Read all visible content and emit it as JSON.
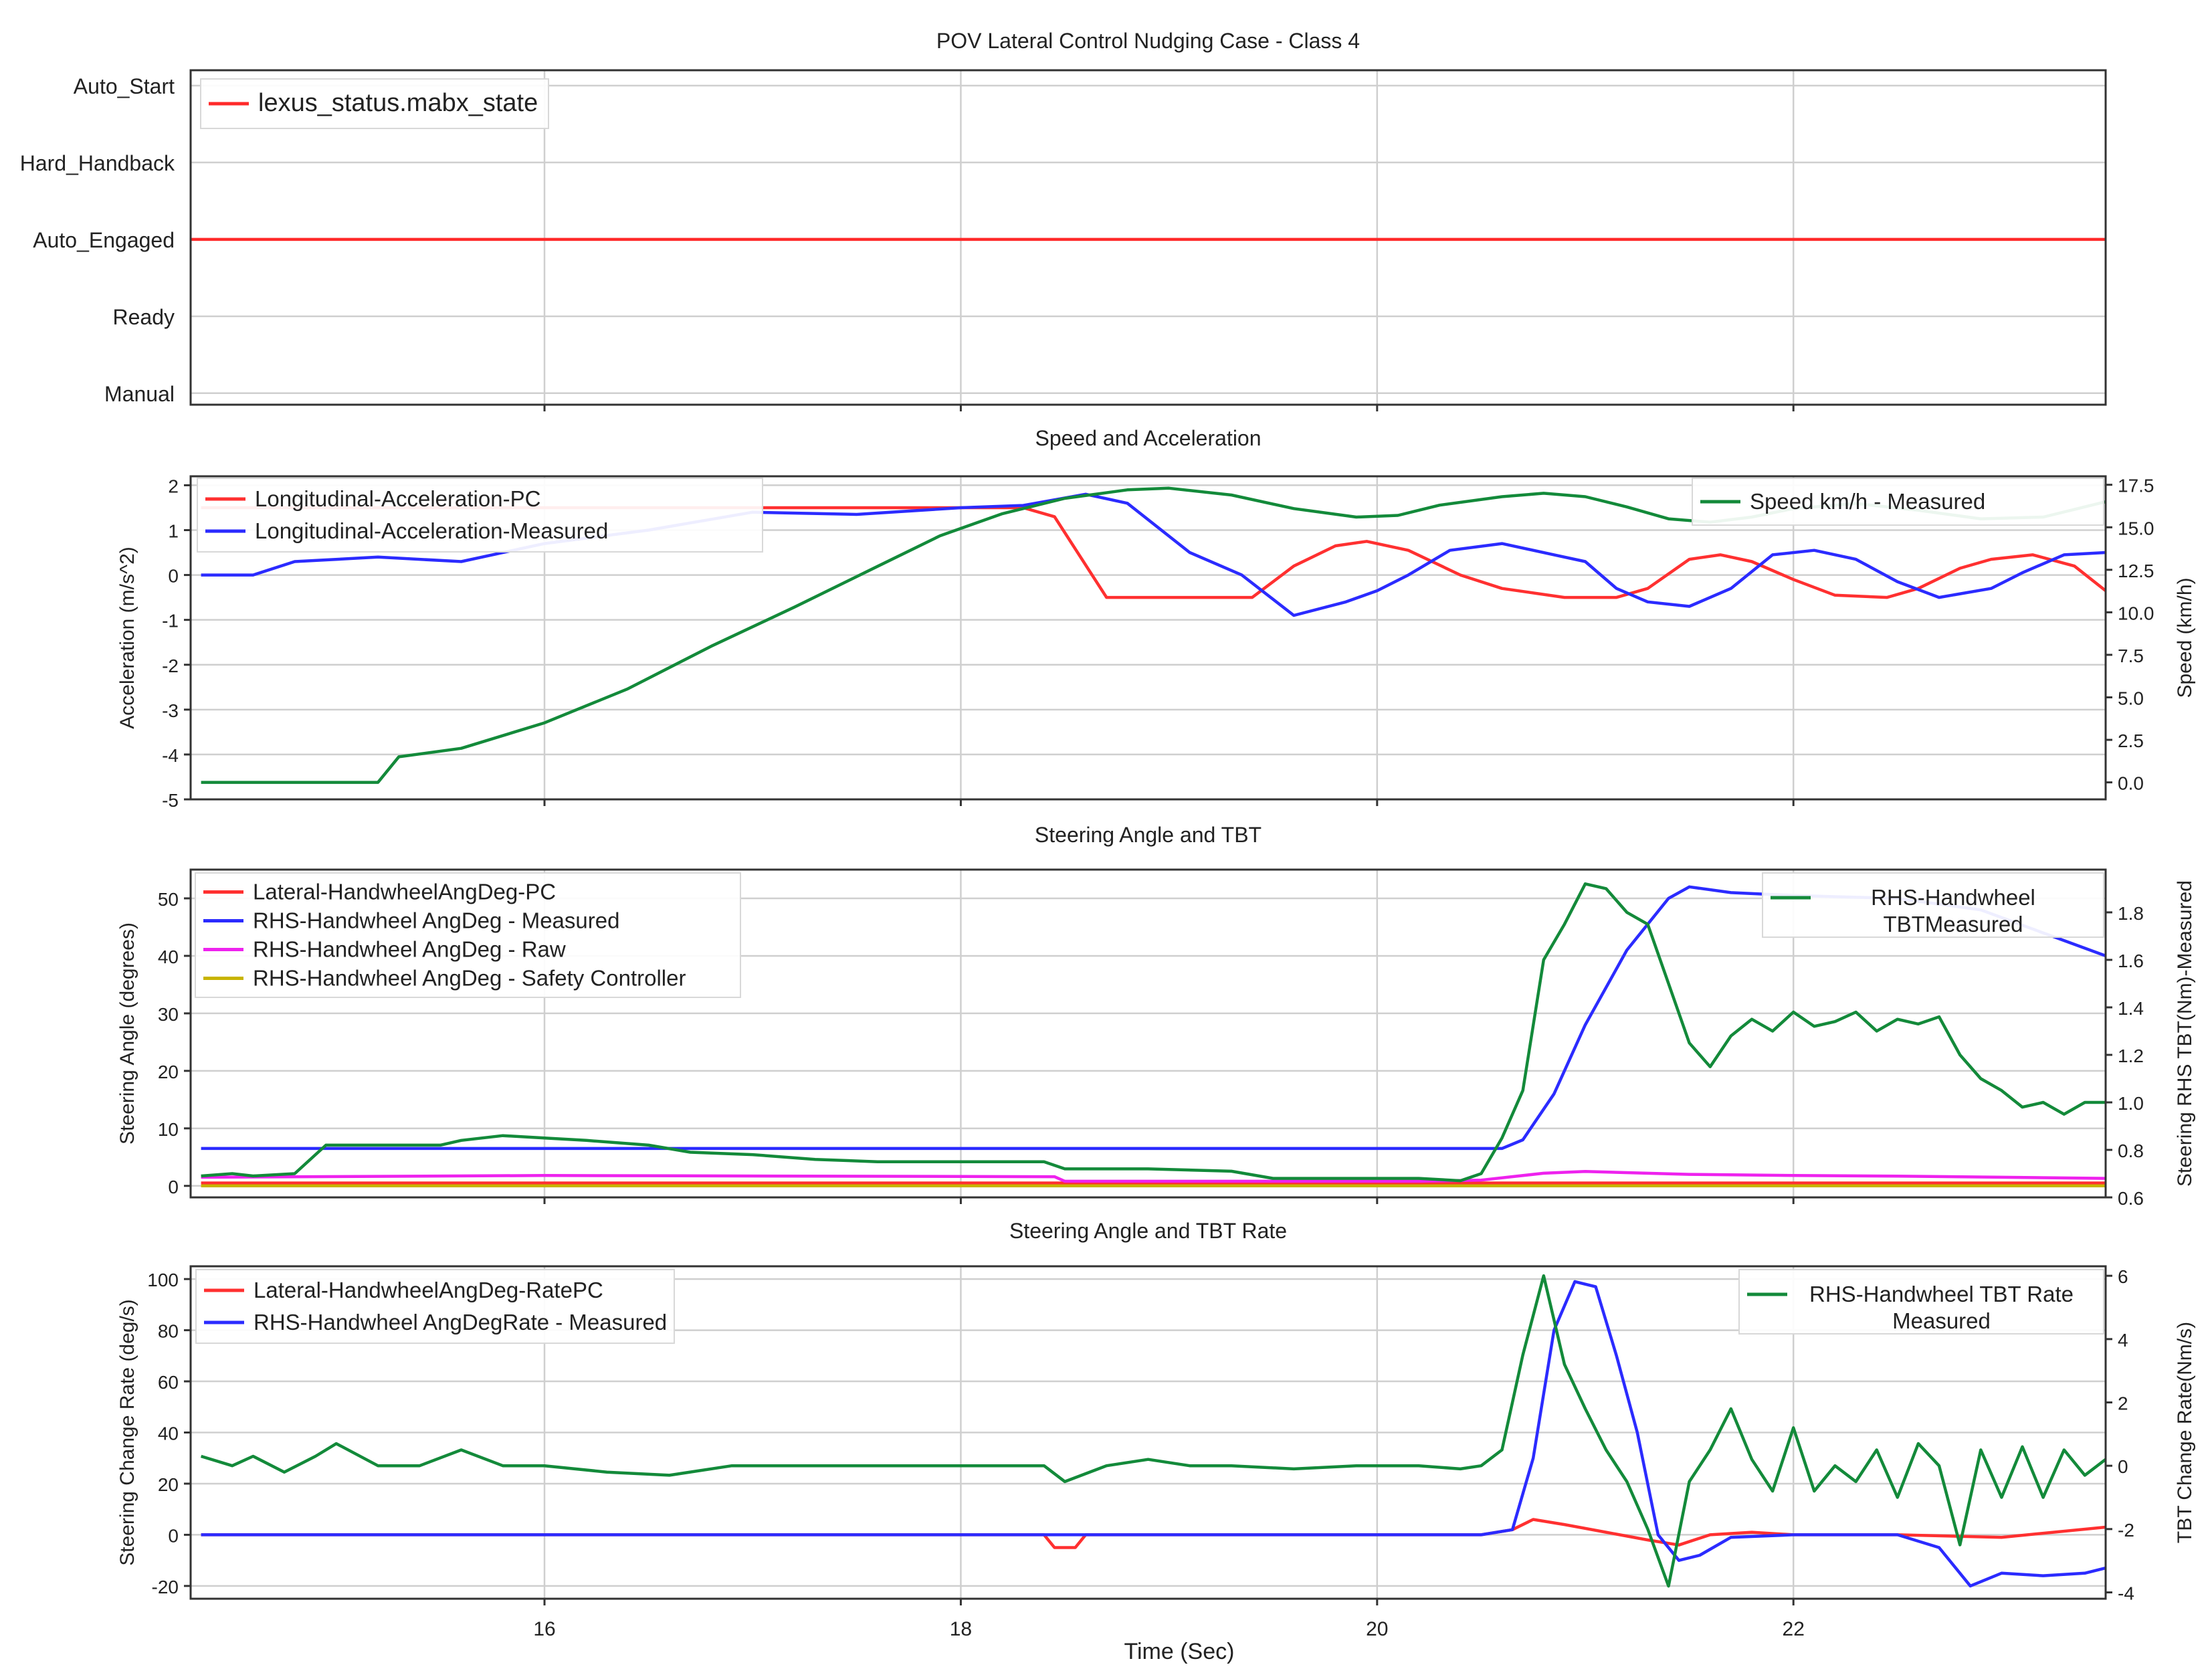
{
  "chart_data": [
    {
      "type": "line",
      "title": "POV Lateral Control Nudging Case - Class 4",
      "xlim": [
        14.3,
        23.5
      ],
      "xticks": [
        16,
        18,
        20,
        22
      ],
      "ycategories": [
        "Manual",
        "Ready",
        "Auto_Engaged",
        "Hard_Handback",
        "Auto_Start"
      ],
      "ylim": [
        -0.15,
        4.2
      ],
      "grid": true,
      "legend_location": "upper-left",
      "series": [
        {
          "name": "lexus_status.mabx_state",
          "axis": "left",
          "color": "#ff2a2a",
          "x": [
            14.3,
            23.5
          ],
          "y": [
            2,
            2
          ]
        }
      ]
    },
    {
      "type": "line",
      "title": "Speed and Acceleration",
      "xlim": [
        14.3,
        23.5
      ],
      "xticks": [
        16,
        18,
        20,
        22
      ],
      "ylabel": "Acceleration (m/s^2)",
      "ylim": [
        -5,
        2.2
      ],
      "yticks": [
        -5,
        -4,
        -3,
        -2,
        -1,
        0,
        1,
        2
      ],
      "ylabel_right": "Speed (km/h)",
      "ylim_right": [
        -1,
        18
      ],
      "yticks_right": [
        0.0,
        2.5,
        5.0,
        7.5,
        10.0,
        12.5,
        15.0,
        17.5
      ],
      "grid": true,
      "legend_location": "upper-left / upper-right",
      "series": [
        {
          "name": "Longitudinal-Acceleration-PC",
          "axis": "left",
          "color": "#ff3030",
          "x": [
            14.35,
            16.9,
            18.3,
            18.45,
            18.7,
            19.0,
            19.4,
            19.6,
            19.8,
            19.95,
            20.15,
            20.4,
            20.6,
            20.9,
            21.15,
            21.3,
            21.5,
            21.65,
            21.8,
            22.0,
            22.2,
            22.45,
            22.6,
            22.8,
            22.95,
            23.15,
            23.35,
            23.5
          ],
          "y": [
            1.5,
            1.5,
            1.5,
            1.3,
            -0.5,
            -0.5,
            -0.5,
            0.2,
            0.65,
            0.75,
            0.55,
            0.0,
            -0.3,
            -0.5,
            -0.5,
            -0.3,
            0.35,
            0.45,
            0.3,
            -0.1,
            -0.45,
            -0.5,
            -0.3,
            0.15,
            0.35,
            0.45,
            0.2,
            -0.35
          ]
        },
        {
          "name": "Longitudinal-Acceleration-Measured",
          "axis": "left",
          "color": "#2b2bff",
          "x": [
            14.35,
            14.6,
            14.8,
            15.2,
            15.6,
            16.0,
            16.5,
            17.0,
            17.5,
            18.0,
            18.3,
            18.6,
            18.8,
            19.1,
            19.35,
            19.6,
            19.85,
            20.0,
            20.15,
            20.35,
            20.6,
            20.85,
            21.0,
            21.15,
            21.3,
            21.5,
            21.7,
            21.9,
            22.1,
            22.3,
            22.5,
            22.7,
            22.95,
            23.1,
            23.3,
            23.5
          ],
          "y": [
            0.0,
            0.0,
            0.3,
            0.4,
            0.3,
            0.7,
            1.0,
            1.4,
            1.35,
            1.5,
            1.55,
            1.8,
            1.6,
            0.5,
            0.0,
            -0.9,
            -0.6,
            -0.35,
            0.0,
            0.55,
            0.7,
            0.45,
            0.3,
            -0.3,
            -0.6,
            -0.7,
            -0.3,
            0.45,
            0.55,
            0.35,
            -0.15,
            -0.5,
            -0.3,
            0.05,
            0.45,
            0.5
          ]
        },
        {
          "name": "Speed km/h - Measured",
          "axis": "right",
          "color": "#138a3a",
          "x": [
            14.35,
            14.8,
            15.2,
            15.3,
            15.6,
            16.0,
            16.4,
            16.8,
            17.2,
            17.6,
            17.9,
            18.2,
            18.5,
            18.8,
            19.0,
            19.3,
            19.6,
            19.9,
            20.1,
            20.3,
            20.6,
            20.8,
            21.0,
            21.2,
            21.4,
            21.6,
            21.8,
            22.0,
            22.3,
            22.6,
            22.9,
            23.2,
            23.5
          ],
          "y": [
            0.0,
            0.0,
            0.0,
            1.5,
            2.0,
            3.5,
            5.5,
            8.0,
            10.3,
            12.7,
            14.5,
            15.8,
            16.7,
            17.2,
            17.3,
            16.9,
            16.1,
            15.6,
            15.7,
            16.3,
            16.8,
            17.0,
            16.8,
            16.2,
            15.5,
            15.3,
            15.6,
            16.1,
            16.4,
            16.0,
            15.5,
            15.6,
            16.5
          ]
        }
      ]
    },
    {
      "type": "line",
      "title": "Steering Angle and TBT",
      "xlim": [
        14.3,
        23.5
      ],
      "xticks": [
        16,
        18,
        20,
        22
      ],
      "ylabel": "Steering Angle (degrees)",
      "ylim": [
        -2,
        55
      ],
      "yticks": [
        0,
        10,
        20,
        30,
        40,
        50
      ],
      "ylabel_right": "Steering RHS TBT(Nm)-Measured",
      "ylim_right": [
        0.6,
        1.98
      ],
      "yticks_right": [
        0.6,
        0.8,
        1.0,
        1.2,
        1.4,
        1.6,
        1.8
      ],
      "grid": true,
      "legend_location": "upper-left / upper-right",
      "series": [
        {
          "name": "Lateral-HandwheelAngDeg-PC",
          "axis": "left",
          "color": "#ff3030",
          "x": [
            14.35,
            23.5
          ],
          "y": [
            0.5,
            0.5
          ]
        },
        {
          "name": "RHS-Handwheel AngDeg - Measured",
          "axis": "left",
          "color": "#2b2bff",
          "x": [
            14.35,
            20.6,
            20.7,
            20.85,
            21.0,
            21.2,
            21.4,
            21.5,
            21.7,
            22.0,
            22.5,
            22.9,
            23.2,
            23.5
          ],
          "y": [
            6.5,
            6.5,
            8.0,
            16.0,
            28.0,
            41.0,
            50.0,
            52.0,
            51.0,
            50.5,
            50.0,
            48.0,
            44.0,
            40.0
          ]
        },
        {
          "name": "RHS-Handwheel AngDeg - Raw",
          "axis": "left",
          "color": "#ee22ee",
          "x": [
            14.35,
            16.0,
            18.45,
            18.5,
            20.2,
            20.5,
            20.8,
            21.0,
            21.5,
            22.0,
            22.5,
            23.0,
            23.5
          ],
          "y": [
            1.5,
            1.8,
            1.6,
            0.8,
            0.8,
            1.0,
            2.2,
            2.5,
            2.0,
            1.8,
            1.7,
            1.5,
            1.3
          ]
        },
        {
          "name": "RHS-Handwheel AngDeg - Safety Controller",
          "axis": "left",
          "color": "#c8b400",
          "x": [
            14.35,
            23.5
          ],
          "y": [
            0.0,
            0.0
          ]
        },
        {
          "name": "RHS-Handwheel TBTMeasured",
          "axis": "right",
          "color": "#138a3a",
          "x": [
            14.35,
            14.5,
            14.6,
            14.8,
            14.95,
            15.2,
            15.5,
            15.6,
            15.8,
            16.0,
            16.2,
            16.5,
            16.7,
            17.0,
            17.3,
            17.6,
            18.0,
            18.4,
            18.5,
            18.9,
            19.3,
            19.5,
            19.8,
            20.2,
            20.4,
            20.5,
            20.6,
            20.7,
            20.8,
            20.9,
            21.0,
            21.1,
            21.2,
            21.3,
            21.4,
            21.5,
            21.6,
            21.7,
            21.8,
            21.9,
            22.0,
            22.1,
            22.2,
            22.3,
            22.4,
            22.5,
            22.6,
            22.7,
            22.8,
            22.9,
            23.0,
            23.1,
            23.2,
            23.3,
            23.4,
            23.5
          ],
          "y": [
            0.69,
            0.7,
            0.69,
            0.7,
            0.82,
            0.82,
            0.82,
            0.84,
            0.86,
            0.85,
            0.84,
            0.82,
            0.79,
            0.78,
            0.76,
            0.75,
            0.75,
            0.75,
            0.72,
            0.72,
            0.71,
            0.68,
            0.68,
            0.68,
            0.67,
            0.7,
            0.85,
            1.05,
            1.6,
            1.75,
            1.92,
            1.9,
            1.8,
            1.75,
            1.5,
            1.25,
            1.15,
            1.28,
            1.35,
            1.3,
            1.38,
            1.32,
            1.34,
            1.38,
            1.3,
            1.35,
            1.33,
            1.36,
            1.2,
            1.1,
            1.05,
            0.98,
            1.0,
            0.95,
            1.0,
            1.0
          ]
        }
      ]
    },
    {
      "type": "line",
      "title": "Steering Angle and TBT Rate",
      "xlim": [
        14.3,
        23.5
      ],
      "xticks": [
        16,
        18,
        20,
        22
      ],
      "xlabel": "Time (Sec)",
      "ylabel": "Steering Change Rate (deg/s)",
      "ylim": [
        -25,
        105
      ],
      "yticks": [
        -20,
        0,
        20,
        40,
        60,
        80,
        100
      ],
      "ylabel_right": "TBT Change Rate(Nm/s)",
      "ylim_right": [
        -4.2,
        6.3
      ],
      "yticks_right": [
        -4,
        -2,
        0,
        2,
        4,
        6
      ],
      "grid": true,
      "legend_location": "upper-left / upper-right",
      "series": [
        {
          "name": "Lateral-HandwheelAngDeg-RatePC",
          "axis": "left",
          "color": "#ff3030",
          "x": [
            14.35,
            18.4,
            18.45,
            18.55,
            18.6,
            20.5,
            20.65,
            20.75,
            20.9,
            21.1,
            21.3,
            21.45,
            21.6,
            21.8,
            22.0,
            22.5,
            23.0,
            23.5
          ],
          "y": [
            0.0,
            0.0,
            -5.0,
            -5.0,
            0.0,
            0.0,
            2.0,
            6.0,
            4.0,
            1.0,
            -2.0,
            -4.0,
            0.0,
            1.0,
            0.0,
            0.0,
            -1.0,
            3.0
          ]
        },
        {
          "name": "RHS-Handwheel AngDegRate - Measured",
          "axis": "left",
          "color": "#2b2bff",
          "x": [
            14.35,
            20.5,
            20.65,
            20.75,
            20.85,
            20.95,
            21.05,
            21.15,
            21.25,
            21.35,
            21.45,
            21.55,
            21.7,
            22.0,
            22.5,
            22.7,
            22.85,
            23.0,
            23.2,
            23.4,
            23.5
          ],
          "y": [
            0.0,
            0.0,
            2.0,
            30.0,
            80.0,
            99.0,
            97.0,
            70.0,
            40.0,
            0.0,
            -10.0,
            -8.0,
            -1.0,
            0.0,
            0.0,
            -5.0,
            -20.0,
            -15.0,
            -16.0,
            -15.0,
            -13.0
          ]
        },
        {
          "name": "RHS-Handwheel TBT Rate Measured",
          "axis": "right",
          "color": "#138a3a",
          "x": [
            14.35,
            14.5,
            14.6,
            14.75,
            14.9,
            15.0,
            15.2,
            15.4,
            15.6,
            15.8,
            16.0,
            16.3,
            16.6,
            16.9,
            17.2,
            17.5,
            17.8,
            18.1,
            18.4,
            18.5,
            18.7,
            18.9,
            19.1,
            19.3,
            19.6,
            19.9,
            20.2,
            20.4,
            20.5,
            20.6,
            20.7,
            20.8,
            20.9,
            21.0,
            21.1,
            21.2,
            21.3,
            21.4,
            21.5,
            21.6,
            21.7,
            21.8,
            21.9,
            22.0,
            22.1,
            22.2,
            22.3,
            22.4,
            22.5,
            22.6,
            22.7,
            22.8,
            22.9,
            23.0,
            23.1,
            23.2,
            23.3,
            23.4,
            23.5
          ],
          "y": [
            0.3,
            0.0,
            0.3,
            -0.2,
            0.3,
            0.7,
            0.0,
            0.0,
            0.5,
            0.0,
            0.0,
            -0.2,
            -0.3,
            0.0,
            0.0,
            0.0,
            0.0,
            0.0,
            0.0,
            -0.5,
            0.0,
            0.2,
            0.0,
            0.0,
            -0.1,
            0.0,
            0.0,
            -0.1,
            0.0,
            0.5,
            3.5,
            6.0,
            3.2,
            1.8,
            0.5,
            -0.5,
            -2.0,
            -3.8,
            -0.5,
            0.5,
            1.8,
            0.2,
            -0.8,
            1.2,
            -0.8,
            0.0,
            -0.5,
            0.5,
            -1.0,
            0.7,
            0.0,
            -2.5,
            0.5,
            -1.0,
            0.6,
            -1.0,
            0.5,
            -0.3,
            0.2
          ]
        }
      ]
    }
  ]
}
